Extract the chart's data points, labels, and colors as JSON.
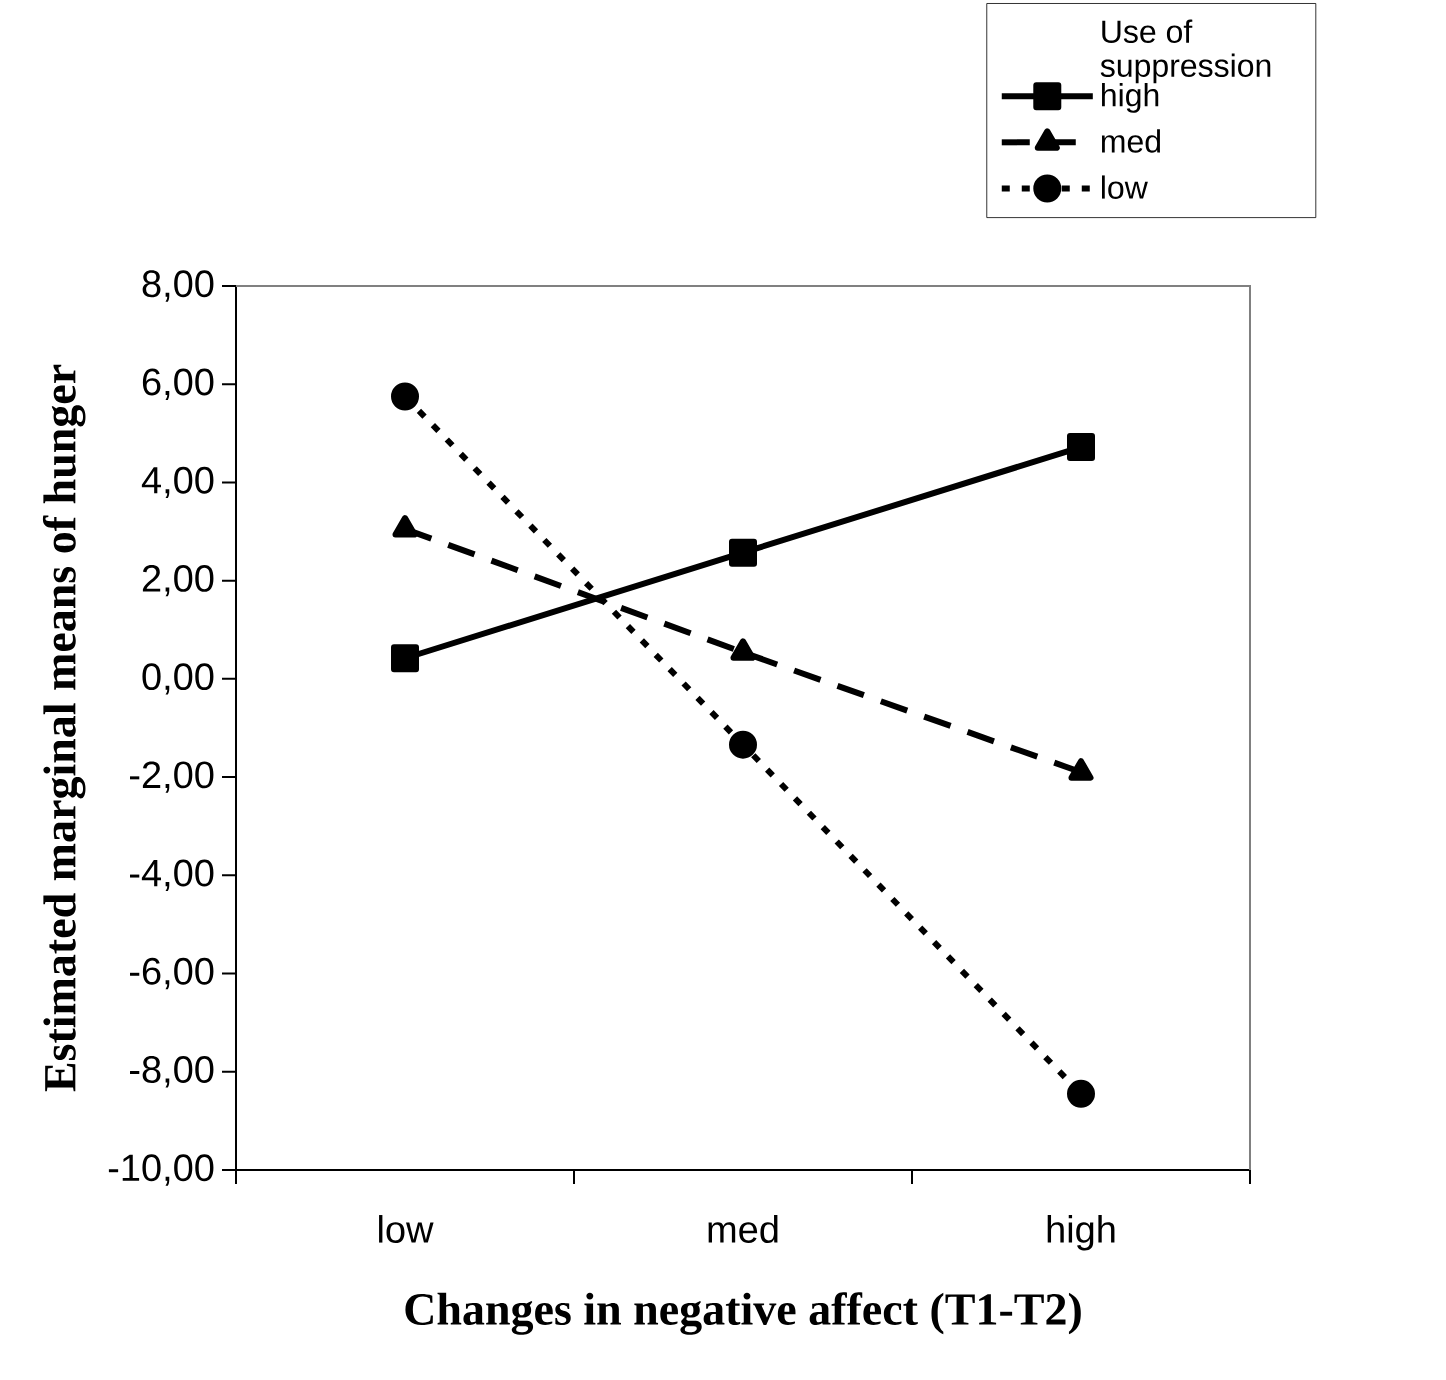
{
  "chart_data": {
    "type": "line",
    "xlabel": "Changes in negative affect (T1-T2)",
    "ylabel": "Estimated marginal means of hunger",
    "legend_title": "Use of suppression",
    "legend": "top right",
    "categories": [
      "low",
      "med",
      "high"
    ],
    "ylim": [
      -10,
      8
    ],
    "yticks": [
      {
        "value": -10,
        "label": "-10,00"
      },
      {
        "value": -8,
        "label": "-8,00"
      },
      {
        "value": -6,
        "label": "-6,00"
      },
      {
        "value": -4,
        "label": "-4,00"
      },
      {
        "value": -2,
        "label": "-2,00"
      },
      {
        "value": 0,
        "label": "0,00"
      },
      {
        "value": 2,
        "label": "2,00"
      },
      {
        "value": 4,
        "label": "4,00"
      },
      {
        "value": 6,
        "label": "6,00"
      },
      {
        "value": 8,
        "label": "8,00"
      }
    ],
    "series": [
      {
        "name": "high",
        "color": "#000000",
        "values": [
          0.42,
          2.57,
          4.72
        ],
        "marker": "square",
        "line_style": "solid"
      },
      {
        "name": "med",
        "color": "#000000",
        "values": [
          3.05,
          0.54,
          -1.9
        ],
        "marker": "triangle",
        "line_style": "dashed"
      },
      {
        "name": "low",
        "color": "#000000",
        "values": [
          5.75,
          -1.34,
          -8.45
        ],
        "marker": "circle",
        "line_style": "dotted"
      }
    ]
  }
}
